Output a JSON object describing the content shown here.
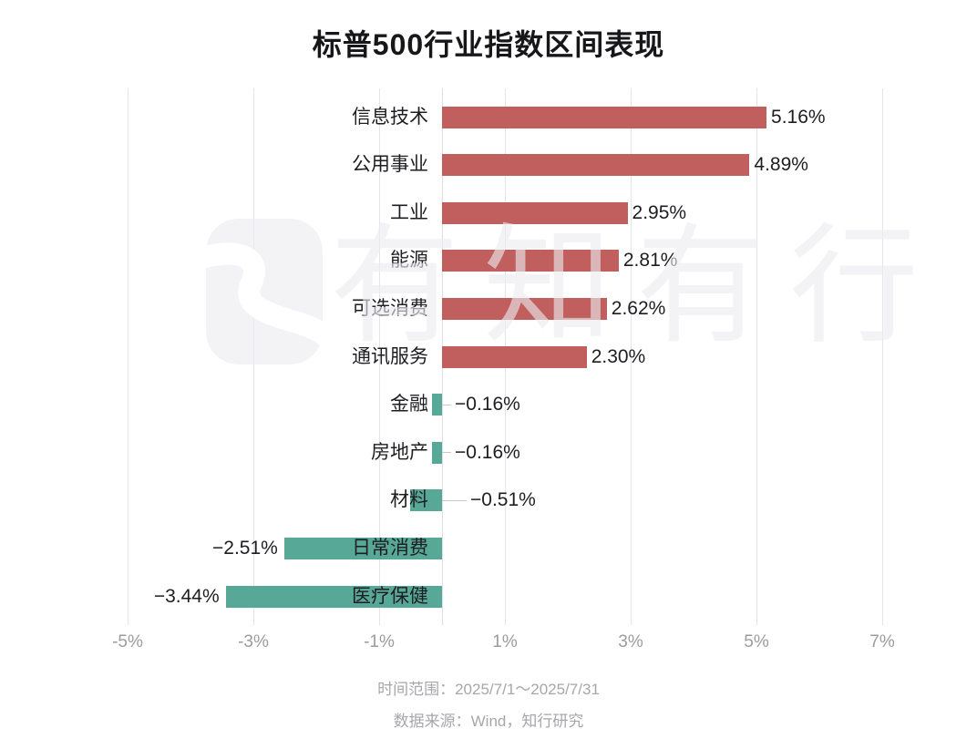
{
  "title": "标普500行业指数区间表现",
  "watermark": {
    "text": "有知有行",
    "logo": "youzhiyouxing-logo"
  },
  "footer": {
    "time_range": "时间范围：2025/7/1～2025/7/31",
    "source": "数据来源：Wind，知行研究"
  },
  "colors": {
    "positive_bar": "#c05f5d",
    "negative_bar": "#58a898",
    "gridline": "#e4e4ea",
    "tick_text": "#9b9ba1",
    "footer_text": "#a7a7ab",
    "label_text": "#1e1e22"
  },
  "chart_data": {
    "type": "bar",
    "orientation": "horizontal",
    "title": "标普500行业指数区间表现",
    "categories": [
      "信息技术",
      "公用事业",
      "工业",
      "能源",
      "可选消费",
      "通讯服务",
      "金融",
      "房地产",
      "材料",
      "日常消费",
      "医疗保健"
    ],
    "values": [
      5.16,
      4.89,
      2.95,
      2.81,
      2.62,
      2.3,
      -0.16,
      -0.16,
      -0.51,
      -2.51,
      -3.44
    ],
    "value_labels": [
      "5.16%",
      "4.89%",
      "2.95%",
      "2.81%",
      "2.62%",
      "2.30%",
      "−0.16%",
      "−0.16%",
      "−0.51%",
      "−2.51%",
      "−3.44%"
    ],
    "x_axis": {
      "tick_labels": [
        "-5%",
        "-3%",
        "-1%",
        "1%",
        "3%",
        "5%",
        "7%"
      ],
      "tick_values": [
        -5,
        -3,
        -1,
        1,
        3,
        5,
        7
      ],
      "unit": "%",
      "range": [
        -5.6,
        7.5
      ],
      "grid": true,
      "zero_line": true
    },
    "legend": "none",
    "notes": [
      "时间范围：2025/7/1～2025/7/31",
      "数据来源：Wind，知行研究"
    ]
  }
}
